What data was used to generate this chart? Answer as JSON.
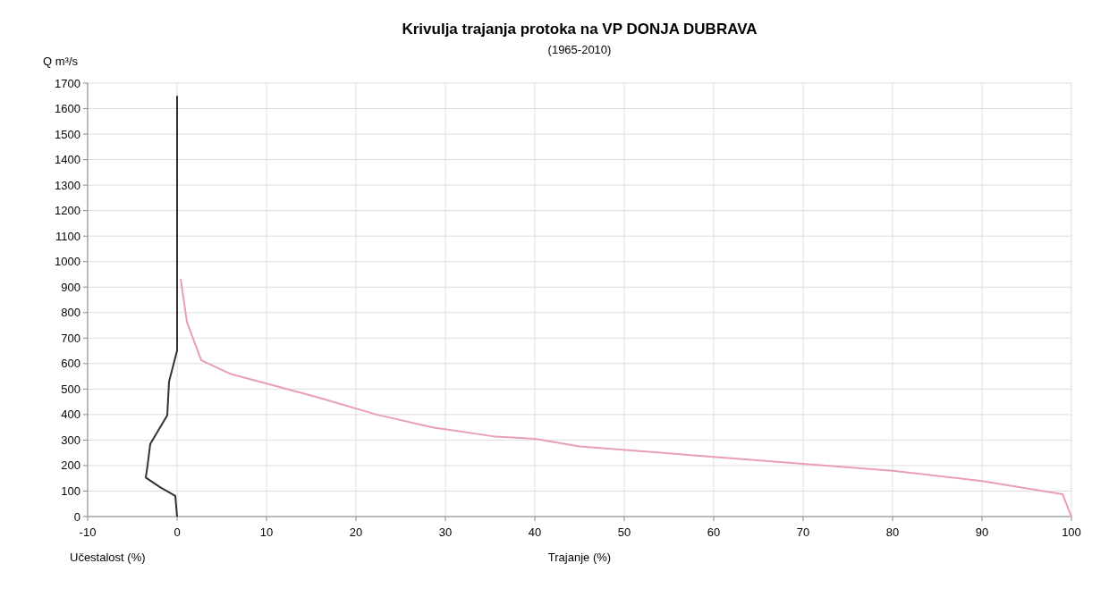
{
  "chart_data": {
    "type": "line",
    "title": "Krivulja trajanja protoka na VP DONJA DUBRAVA",
    "subtitle": "(1965-2010)",
    "ylabel": "Q m³/s",
    "xlabel": "Trajanje (%)",
    "annotations": [
      "Učestalost (%)"
    ],
    "xlim": [
      -10,
      100
    ],
    "xticks": [
      -10,
      0,
      10,
      20,
      30,
      40,
      50,
      60,
      70,
      80,
      90,
      100
    ],
    "ylim": [
      0,
      1700
    ],
    "yticks": [
      0,
      100,
      200,
      300,
      400,
      500,
      600,
      700,
      800,
      900,
      1000,
      1100,
      1200,
      1300,
      1400,
      1500,
      1600,
      1700
    ],
    "grid": true,
    "marker": "none",
    "line_style": "solid",
    "series": [
      {
        "color": "#e8a0b0",
        "x": [
          0.4,
          1.1,
          2.7,
          6,
          9.2,
          15.7,
          22.3,
          28.7,
          35.3,
          40,
          45,
          60,
          70,
          80,
          90,
          99,
          100
        ],
        "values": [
          932,
          763,
          613,
          559,
          529,
          468,
          400,
          349,
          315,
          305,
          275,
          234,
          207,
          180,
          139,
          88,
          0
        ]
      },
      {
        "color": "#333333",
        "x": [
          0,
          0,
          -0.9,
          -1.1,
          -3,
          -3.3,
          -3.5,
          -1.9,
          -0.2,
          0
        ],
        "values": [
          1650,
          651,
          529,
          397,
          285,
          200,
          153,
          115,
          81,
          0
        ]
      }
    ]
  }
}
